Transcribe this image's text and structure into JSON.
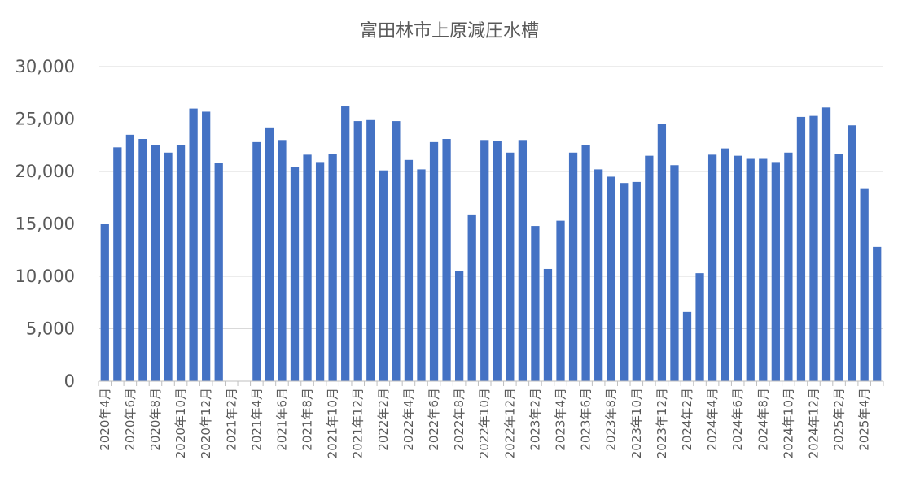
{
  "chart_data": {
    "type": "bar",
    "title": "富田林市上原減圧水槽",
    "xlabel": "",
    "ylabel": "",
    "ylim": [
      0,
      30000
    ],
    "y_ticks": [
      "0",
      "5,000",
      "10,000",
      "15,000",
      "20,000",
      "25,000",
      "30,000"
    ],
    "grid": true,
    "legend": "none",
    "bar_color": "#4472c4",
    "categories": [
      "2020年4月",
      "2020年5月",
      "2020年6月",
      "2020年7月",
      "2020年8月",
      "2020年9月",
      "2020年10月",
      "2020年11月",
      "2020年12月",
      "2021年1月",
      "2021年2月",
      "2021年3月",
      "2021年4月",
      "2021年5月",
      "2021年6月",
      "2021年7月",
      "2021年8月",
      "2021年9月",
      "2021年10月",
      "2021年11月",
      "2021年12月",
      "2022年1月",
      "2022年2月",
      "2022年3月",
      "2022年4月",
      "2022年5月",
      "2022年6月",
      "2022年7月",
      "2022年8月",
      "2022年9月",
      "2022年10月",
      "2022年11月",
      "2022年12月",
      "2023年1月",
      "2023年2月",
      "2023年3月",
      "2023年4月",
      "2023年5月",
      "2023年6月",
      "2023年7月",
      "2023年8月",
      "2023年9月",
      "2023年10月",
      "2023年11月",
      "2023年12月",
      "2024年1月",
      "2024年2月",
      "2024年3月",
      "2024年4月",
      "2024年5月",
      "2024年6月",
      "2024年7月",
      "2024年8月",
      "2024年9月",
      "2024年10月",
      "2024年11月",
      "2024年12月",
      "2025年1月",
      "2025年2月",
      "2025年3月",
      "2025年4月",
      "2025年5月"
    ],
    "values": [
      15000,
      22300,
      23500,
      23100,
      22500,
      21800,
      22500,
      26000,
      25700,
      20800,
      null,
      null,
      22800,
      24200,
      23000,
      20400,
      21600,
      20900,
      21700,
      26200,
      24800,
      24900,
      20100,
      24800,
      21100,
      20200,
      22800,
      23100,
      10500,
      15900,
      23000,
      22900,
      21800,
      23000,
      14800,
      10700,
      15300,
      21800,
      22500,
      20200,
      19500,
      18900,
      19000,
      21500,
      24500,
      20600,
      6600,
      10300,
      21600,
      22200,
      21500,
      21200,
      21200,
      20900,
      21800,
      25200,
      25300,
      26100,
      21700,
      24400,
      18400,
      12800
    ],
    "x_tick_labels": [
      "2020年4月",
      "2020年6月",
      "2020年8月",
      "2020年10月",
      "2020年12月",
      "2021年2月",
      "2021年4月",
      "2021年6月",
      "2021年8月",
      "2021年10月",
      "2021年12月",
      "2022年2月",
      "2022年4月",
      "2022年6月",
      "2022年8月",
      "2022年10月",
      "2022年12月",
      "2023年2月",
      "2023年4月",
      "2023年6月",
      "2023年8月",
      "2023年10月",
      "2023年12月",
      "2024年2月",
      "2024年4月",
      "2024年6月",
      "2024年8月",
      "2024年10月",
      "2024年12月",
      "2025年2月",
      "2025年4月"
    ]
  }
}
